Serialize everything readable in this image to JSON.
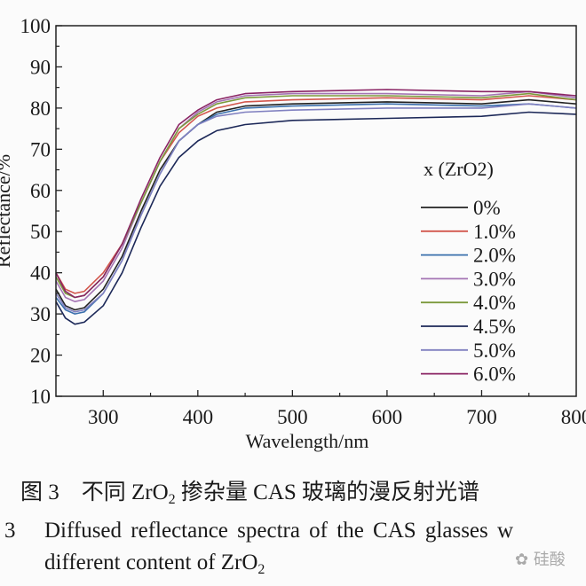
{
  "chart_data": {
    "type": "line",
    "xlabel": "Wavelength/nm",
    "ylabel": "Reflectance/%",
    "xlim": [
      250,
      800
    ],
    "ylim": [
      10,
      100
    ],
    "xticks": [
      300,
      400,
      500,
      600,
      700,
      800
    ],
    "yticks": [
      10,
      20,
      30,
      40,
      50,
      60,
      70,
      80,
      90,
      100
    ],
    "legend_title": "x (ZrO2)",
    "legend_placement": "center-right",
    "grid": false,
    "x": [
      250,
      260,
      270,
      280,
      300,
      320,
      340,
      360,
      380,
      400,
      420,
      450,
      500,
      600,
      700,
      750,
      800
    ],
    "series": [
      {
        "name": "0%",
        "color": "#222222",
        "values": [
          36,
          32,
          31,
          31.5,
          36,
          44,
          55,
          65,
          72,
          76,
          79,
          80.5,
          81,
          81.5,
          81,
          82,
          81
        ]
      },
      {
        "name": "1.0%",
        "color": "#d2564c",
        "values": [
          40,
          36,
          35,
          35.5,
          40,
          47,
          57,
          67,
          74,
          78,
          80,
          81.5,
          82,
          82.5,
          82,
          83,
          82
        ]
      },
      {
        "name": "2.0%",
        "color": "#3b70ad",
        "values": [
          34,
          31,
          30,
          30.5,
          35,
          43,
          54,
          64,
          72,
          76,
          78.5,
          80,
          80.5,
          81,
          80.5,
          81,
          80
        ]
      },
      {
        "name": "3.0%",
        "color": "#a474b4",
        "values": [
          38,
          34,
          33,
          33.5,
          38,
          46,
          57,
          67,
          75,
          79,
          81.5,
          83,
          83.5,
          83.5,
          83,
          84,
          82.5
        ]
      },
      {
        "name": "4.0%",
        "color": "#7c9a3c",
        "values": [
          39,
          35,
          34,
          34.5,
          39,
          47,
          57,
          67,
          75,
          78.5,
          81,
          82.5,
          83,
          83,
          82.5,
          83.5,
          82
        ]
      },
      {
        "name": "4.5%",
        "color": "#1c2858",
        "values": [
          33,
          29,
          27.5,
          28,
          32,
          40,
          51,
          61,
          68,
          72,
          74.5,
          76,
          77,
          77.5,
          78,
          79,
          78.5
        ]
      },
      {
        "name": "5.0%",
        "color": "#8080c0",
        "values": [
          35,
          31.5,
          30.5,
          31,
          35,
          43,
          54,
          64,
          72,
          76,
          78,
          79,
          79.5,
          80,
          80,
          81,
          80
        ]
      },
      {
        "name": "6.0%",
        "color": "#8a2464",
        "values": [
          40,
          35.5,
          34,
          34.5,
          39,
          47,
          58,
          68,
          76,
          79.5,
          82,
          83.5,
          84,
          84.5,
          84,
          84,
          83
        ]
      }
    ]
  },
  "captions": {
    "cn_prefix": "图 3　不同 ZrO",
    "cn_sub": "2",
    "cn_suffix": " 掺杂量 CAS 玻璃的漫反射光谱",
    "en_num": "3",
    "en_line1": "Diffused reflectance spectra of the CAS glasses w",
    "en_line2_prefix": "different content of ZrO",
    "en_line2_sub": "2"
  },
  "watermark": "硅酸"
}
